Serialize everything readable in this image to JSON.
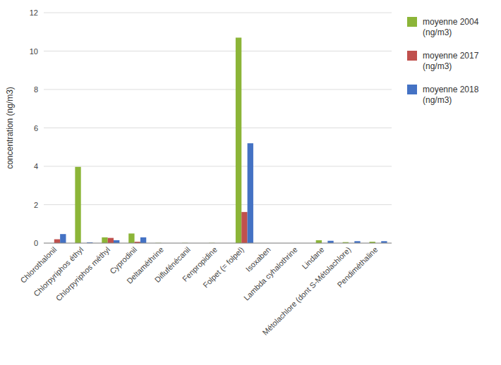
{
  "chart_data": {
    "type": "bar",
    "categories": [
      "Chlorothalonil",
      "Chlorpyriphos éthyl",
      "Chlorpyriphos méthyl",
      "Cyprodinil",
      "Deltaméthrine",
      "Diflufénécanil",
      "Fenpropidine",
      "Folpet (= folpel)",
      "Isoxaben",
      "Lambda cyhalothrine",
      "Lindane",
      "Métolachlore (dont S-Métolachlore)",
      "Pendiméthaline"
    ],
    "series": [
      {
        "name": "moyenne 2004\n(ng/m3)",
        "color": "#8CB538",
        "values": [
          0.0,
          3.97,
          0.3,
          0.5,
          0.01,
          0.01,
          0.01,
          10.7,
          0.0,
          0.0,
          0.15,
          0.05,
          0.07
        ]
      },
      {
        "name": "moyenne 2017\n(ng/m3)",
        "color": "#C0504D",
        "values": [
          0.2,
          0.0,
          0.27,
          0.07,
          0.0,
          0.0,
          0.0,
          1.62,
          0.0,
          0.0,
          0.0,
          0.0,
          0.0
        ]
      },
      {
        "name": "moyenne 2018\n(ng/m3)",
        "color": "#4472C4",
        "values": [
          0.47,
          0.04,
          0.15,
          0.3,
          0.0,
          0.0,
          0.0,
          5.2,
          0.0,
          0.0,
          0.12,
          0.1,
          0.1
        ]
      }
    ],
    "ylabel": "concentration (ng/m3)",
    "ylim": [
      0,
      12
    ],
    "yticks": [
      0,
      2,
      4,
      6,
      8,
      10,
      12
    ],
    "grid": true,
    "legend": "right"
  }
}
